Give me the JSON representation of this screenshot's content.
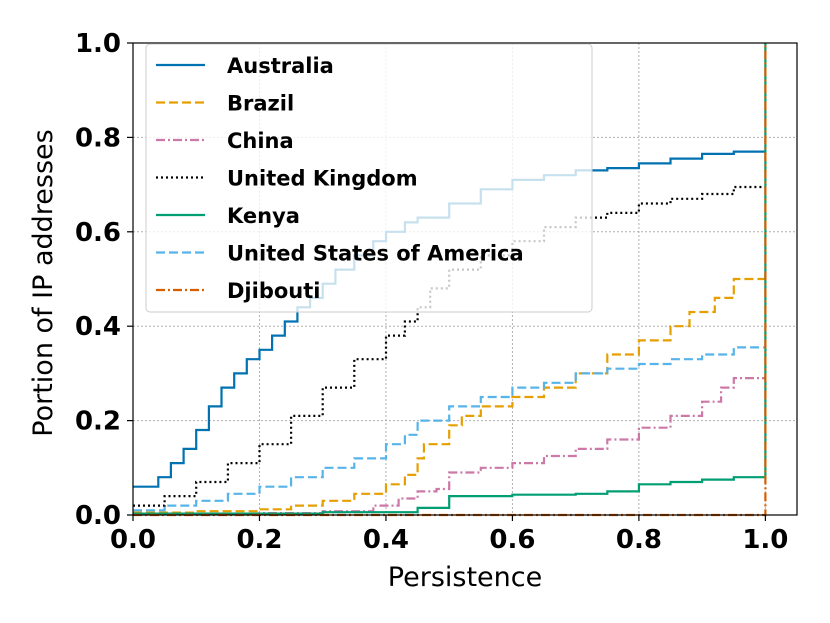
{
  "chart_data": {
    "type": "line",
    "title": "",
    "xlabel": "Persistence",
    "ylabel": "Portion of IP addresses",
    "xlim": [
      0.0,
      1.05
    ],
    "ylim": [
      0.0,
      1.0
    ],
    "xticks": [
      "0.0",
      "0.2",
      "0.4",
      "0.6",
      "0.8",
      "1.0"
    ],
    "yticks": [
      "0.0",
      "0.2",
      "0.4",
      "0.6",
      "0.8",
      "1.0"
    ],
    "grid": true,
    "legend_position": "upper-left",
    "series": [
      {
        "name": "Australia",
        "color": "#0072B2",
        "dash": "solid",
        "points": [
          [
            0.0,
            0.06
          ],
          [
            0.03,
            0.06
          ],
          [
            0.04,
            0.08
          ],
          [
            0.06,
            0.11
          ],
          [
            0.08,
            0.14
          ],
          [
            0.1,
            0.18
          ],
          [
            0.12,
            0.23
          ],
          [
            0.14,
            0.27
          ],
          [
            0.16,
            0.3
          ],
          [
            0.18,
            0.33
          ],
          [
            0.2,
            0.35
          ],
          [
            0.22,
            0.38
          ],
          [
            0.24,
            0.41
          ],
          [
            0.26,
            0.44
          ],
          [
            0.28,
            0.46
          ],
          [
            0.3,
            0.49
          ],
          [
            0.32,
            0.52
          ],
          [
            0.35,
            0.55
          ],
          [
            0.38,
            0.58
          ],
          [
            0.4,
            0.6
          ],
          [
            0.43,
            0.62
          ],
          [
            0.45,
            0.63
          ],
          [
            0.5,
            0.66
          ],
          [
            0.55,
            0.69
          ],
          [
            0.6,
            0.71
          ],
          [
            0.65,
            0.72
          ],
          [
            0.7,
            0.73
          ],
          [
            0.75,
            0.735
          ],
          [
            0.8,
            0.745
          ],
          [
            0.85,
            0.755
          ],
          [
            0.9,
            0.765
          ],
          [
            0.95,
            0.77
          ],
          [
            1.0,
            0.77
          ]
        ]
      },
      {
        "name": "Brazil",
        "color": "#E69F00",
        "dash": "dashed",
        "points": [
          [
            0.0,
            0.005
          ],
          [
            0.1,
            0.008
          ],
          [
            0.2,
            0.012
          ],
          [
            0.25,
            0.02
          ],
          [
            0.3,
            0.03
          ],
          [
            0.35,
            0.045
          ],
          [
            0.4,
            0.065
          ],
          [
            0.43,
            0.085
          ],
          [
            0.45,
            0.12
          ],
          [
            0.46,
            0.15
          ],
          [
            0.5,
            0.19
          ],
          [
            0.52,
            0.21
          ],
          [
            0.55,
            0.23
          ],
          [
            0.6,
            0.25
          ],
          [
            0.65,
            0.27
          ],
          [
            0.7,
            0.3
          ],
          [
            0.75,
            0.34
          ],
          [
            0.8,
            0.37
          ],
          [
            0.85,
            0.4
          ],
          [
            0.88,
            0.43
          ],
          [
            0.92,
            0.46
          ],
          [
            0.95,
            0.5
          ],
          [
            1.0,
            0.505
          ]
        ]
      },
      {
        "name": "China",
        "color": "#CC79A7",
        "dash": "dashdot",
        "points": [
          [
            0.0,
            0.002
          ],
          [
            0.2,
            0.004
          ],
          [
            0.3,
            0.008
          ],
          [
            0.38,
            0.02
          ],
          [
            0.42,
            0.035
          ],
          [
            0.45,
            0.05
          ],
          [
            0.48,
            0.055
          ],
          [
            0.5,
            0.09
          ],
          [
            0.55,
            0.1
          ],
          [
            0.6,
            0.11
          ],
          [
            0.65,
            0.125
          ],
          [
            0.7,
            0.14
          ],
          [
            0.75,
            0.16
          ],
          [
            0.8,
            0.185
          ],
          [
            0.85,
            0.21
          ],
          [
            0.9,
            0.24
          ],
          [
            0.93,
            0.27
          ],
          [
            0.95,
            0.29
          ],
          [
            1.0,
            0.295
          ]
        ]
      },
      {
        "name": "United Kingdom",
        "color": "#000000",
        "dash": "dotted",
        "points": [
          [
            0.0,
            0.02
          ],
          [
            0.05,
            0.04
          ],
          [
            0.1,
            0.07
          ],
          [
            0.15,
            0.11
          ],
          [
            0.2,
            0.15
          ],
          [
            0.25,
            0.21
          ],
          [
            0.3,
            0.27
          ],
          [
            0.35,
            0.33
          ],
          [
            0.4,
            0.38
          ],
          [
            0.43,
            0.41
          ],
          [
            0.45,
            0.44
          ],
          [
            0.47,
            0.48
          ],
          [
            0.5,
            0.52
          ],
          [
            0.55,
            0.55
          ],
          [
            0.6,
            0.58
          ],
          [
            0.65,
            0.61
          ],
          [
            0.7,
            0.63
          ],
          [
            0.75,
            0.64
          ],
          [
            0.8,
            0.66
          ],
          [
            0.85,
            0.67
          ],
          [
            0.9,
            0.68
          ],
          [
            0.95,
            0.695
          ],
          [
            1.0,
            0.695
          ]
        ]
      },
      {
        "name": "Kenya",
        "color": "#009E73",
        "dash": "solid",
        "points": [
          [
            0.0,
            0.003
          ],
          [
            0.3,
            0.006
          ],
          [
            0.45,
            0.015
          ],
          [
            0.5,
            0.04
          ],
          [
            0.6,
            0.043
          ],
          [
            0.7,
            0.045
          ],
          [
            0.75,
            0.05
          ],
          [
            0.8,
            0.065
          ],
          [
            0.85,
            0.07
          ],
          [
            0.9,
            0.075
          ],
          [
            0.95,
            0.08
          ],
          [
            1.0,
            0.082
          ],
          [
            1.0,
            1.0
          ]
        ]
      },
      {
        "name": "United States of America",
        "color": "#56B4E9",
        "dash": "dashed",
        "points": [
          [
            0.0,
            0.01
          ],
          [
            0.05,
            0.02
          ],
          [
            0.1,
            0.03
          ],
          [
            0.15,
            0.045
          ],
          [
            0.2,
            0.06
          ],
          [
            0.25,
            0.08
          ],
          [
            0.3,
            0.1
          ],
          [
            0.35,
            0.12
          ],
          [
            0.4,
            0.15
          ],
          [
            0.43,
            0.17
          ],
          [
            0.45,
            0.2
          ],
          [
            0.5,
            0.23
          ],
          [
            0.55,
            0.25
          ],
          [
            0.6,
            0.27
          ],
          [
            0.65,
            0.28
          ],
          [
            0.7,
            0.3
          ],
          [
            0.75,
            0.31
          ],
          [
            0.8,
            0.32
          ],
          [
            0.85,
            0.33
          ],
          [
            0.9,
            0.34
          ],
          [
            0.95,
            0.355
          ],
          [
            1.0,
            0.355
          ]
        ]
      },
      {
        "name": "Djibouti",
        "color": "#D55E00",
        "dash": "dashdot",
        "points": [
          [
            0.0,
            0.0
          ],
          [
            1.0,
            0.0
          ],
          [
            1.0,
            1.0
          ]
        ]
      }
    ]
  }
}
